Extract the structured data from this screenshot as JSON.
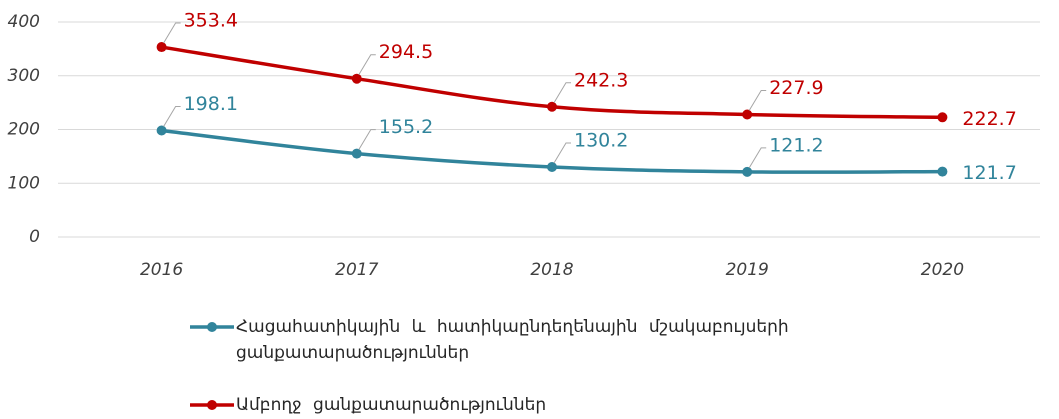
{
  "chart_data": {
    "type": "line",
    "categories": [
      "2016",
      "2017",
      "2018",
      "2019",
      "2020"
    ],
    "series": [
      {
        "name": "Հացահատիկային և հատիկաընդեղենային մշակաբույսերի ցանքատարածություններ",
        "color": "#31849b",
        "values": [
          198.1,
          155.2,
          130.2,
          121.2,
          121.7
        ]
      },
      {
        "name": "Ամբողջ ցանքատարածություններ",
        "color": "#c00000",
        "values": [
          353.4,
          294.5,
          242.3,
          227.9,
          222.7
        ]
      }
    ],
    "ylim": [
      0,
      400
    ],
    "yticks": [
      0,
      100,
      200,
      300,
      400
    ],
    "grid": true
  }
}
